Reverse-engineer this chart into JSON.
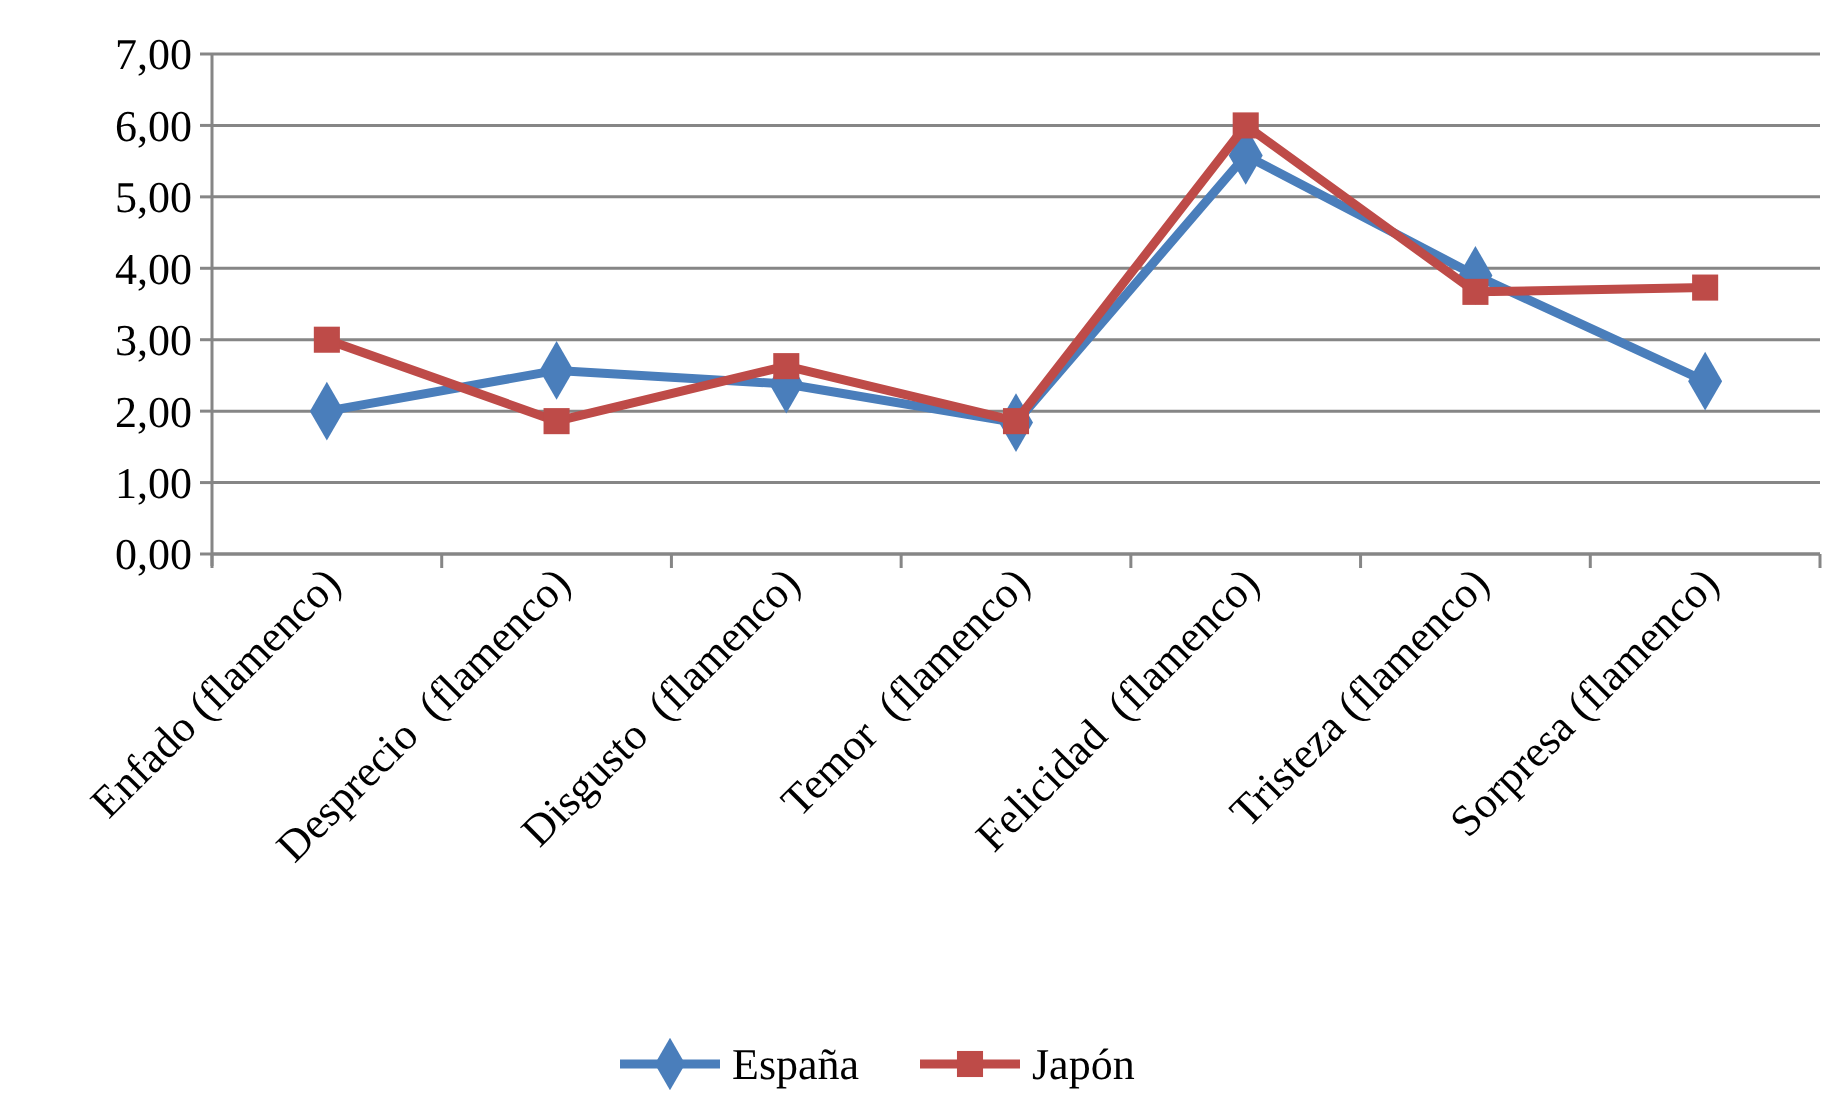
{
  "chart_data": {
    "type": "line",
    "categories": [
      "Enfado (flamenco)",
      "Desprecio  (flamenco)",
      "Disgusto  (flamenco)",
      "Temor  (flamenco)",
      "Felicidad  (flamenco)",
      "Tristeza (flamenco)",
      "Sorpresa (flamenco)"
    ],
    "series": [
      {
        "name": "España",
        "color": "#4a7ebb",
        "marker": "diamond",
        "values": [
          2.0,
          2.57,
          2.38,
          1.84,
          5.58,
          3.9,
          2.42
        ]
      },
      {
        "name": "Japón",
        "color": "#be4b48",
        "marker": "square",
        "values": [
          3.0,
          1.86,
          2.63,
          1.86,
          6.0,
          3.67,
          3.73
        ]
      }
    ],
    "ylim": [
      0,
      7
    ],
    "yticks": [
      {
        "value": 0,
        "label": "0,00"
      },
      {
        "value": 1,
        "label": "1,00"
      },
      {
        "value": 2,
        "label": "2,00"
      },
      {
        "value": 3,
        "label": "3,00"
      },
      {
        "value": 4,
        "label": "4,00"
      },
      {
        "value": 5,
        "label": "5,00"
      },
      {
        "value": 6,
        "label": "6,00"
      },
      {
        "value": 7,
        "label": "7,00"
      }
    ],
    "grid": "y",
    "legend": "bottom",
    "line_style": "solid"
  }
}
